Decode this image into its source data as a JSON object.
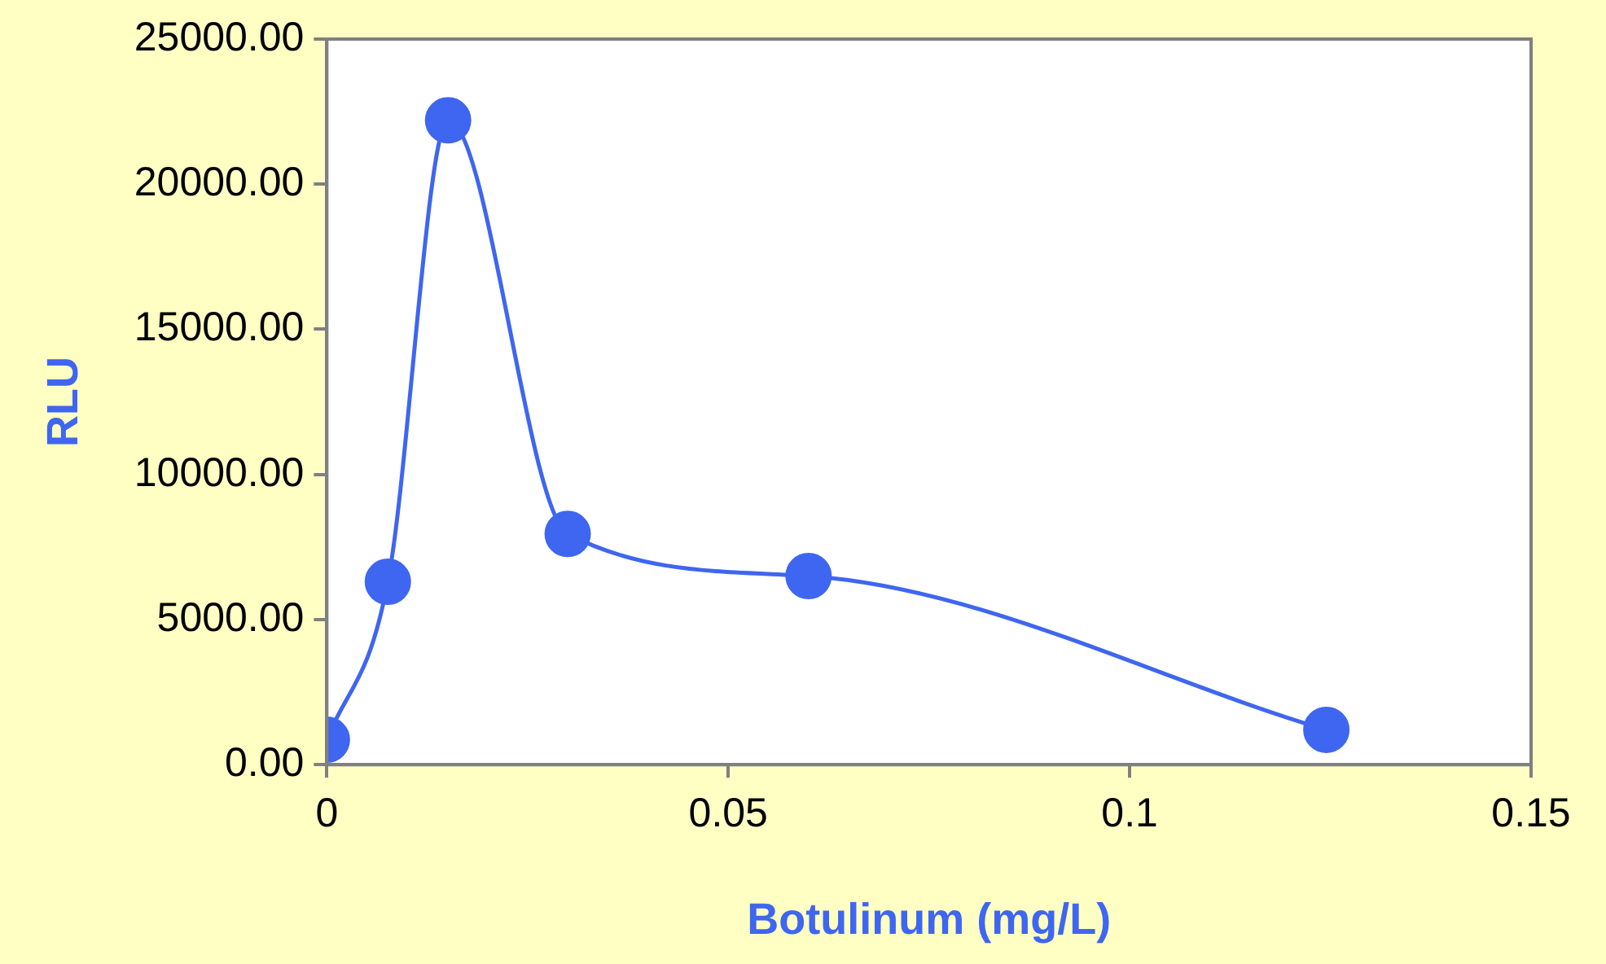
{
  "chart_data": {
    "type": "line",
    "xlabel": "Botulinum (mg/L)",
    "ylabel": "RLU",
    "x": [
      0,
      0.0076,
      0.0151,
      0.03,
      0.06,
      0.1245
    ],
    "series": [
      {
        "color": "#3f66f0",
        "values": [
          860,
          6300,
          22200,
          7950,
          6500,
          1200
        ]
      }
    ],
    "xlim": [
      0,
      0.15
    ],
    "xticks": [
      0,
      0.05,
      0.1,
      0.15
    ],
    "ylim": [
      0,
      25000
    ],
    "yticks": [
      {
        "value": 0,
        "label": "0.00"
      },
      {
        "value": 5000,
        "label": "5000.00"
      },
      {
        "value": 10000,
        "label": "10000.00"
      },
      {
        "value": 15000,
        "label": "15000.00"
      },
      {
        "value": 20000,
        "label": "20000.00"
      },
      {
        "value": 25000,
        "label": "25000.00"
      }
    ],
    "marker": "circle",
    "line_style": "solid",
    "grid": false,
    "legend": false
  }
}
